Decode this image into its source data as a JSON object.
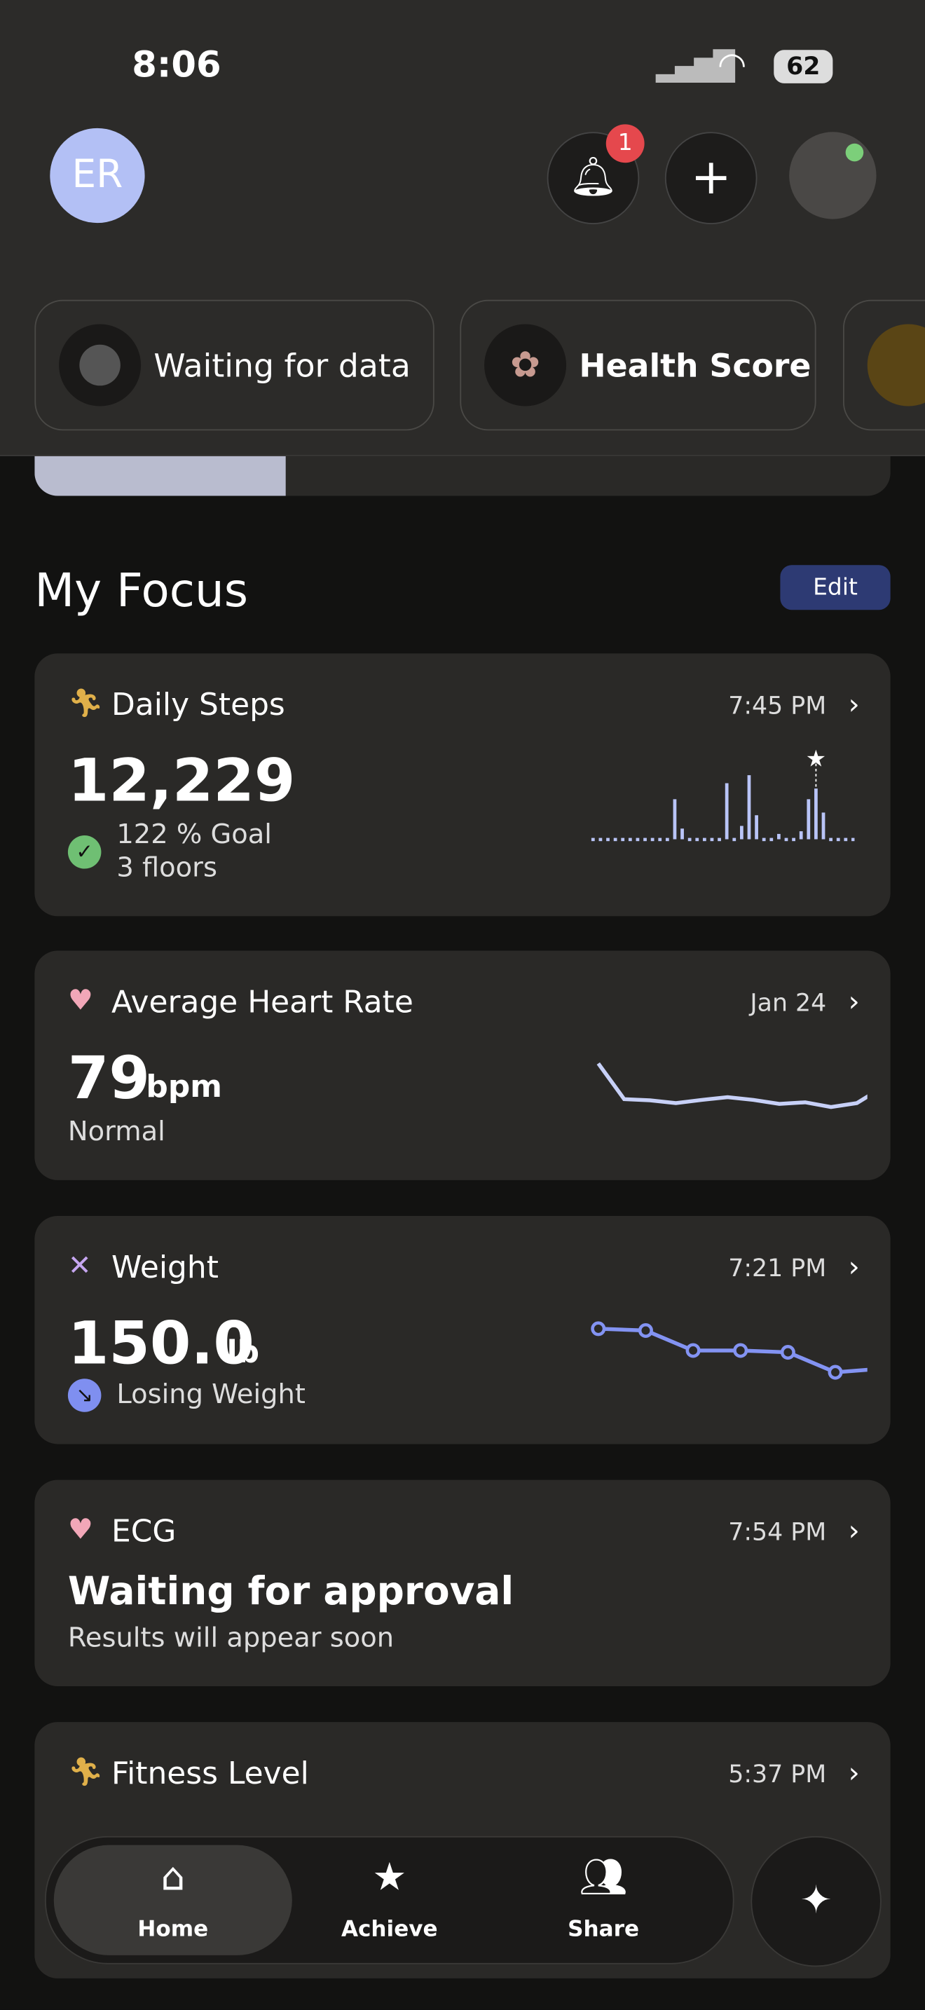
{
  "status_bar": {
    "time": "8:06",
    "battery": "62"
  },
  "header": {
    "avatar": "ER",
    "notification_count": "1"
  },
  "chips": [
    "Waiting for data",
    "Health Score"
  ],
  "section": {
    "title": "My Focus",
    "action": "Edit"
  },
  "cards": [
    {
      "title": "Daily Steps",
      "time": "7:45 PM",
      "value": "12,229",
      "detail": [
        "122 % Goal",
        "3 floors"
      ],
      "chart": [
        1,
        1,
        1,
        1,
        1,
        1,
        1,
        1,
        1,
        1,
        1,
        30,
        8,
        1,
        1,
        1,
        1,
        1,
        42,
        1,
        10,
        48,
        18,
        1,
        1,
        4,
        1,
        1,
        6,
        30,
        38,
        20,
        1,
        1,
        1,
        1,
        1,
        1,
        1,
        1
      ]
    },
    {
      "title": "Average Heart Rate",
      "time": "Jan 24",
      "value": "79",
      "unit": "bpm",
      "detail": [
        "Normal"
      ],
      "chart": [
        88,
        79,
        78.7,
        78,
        78.8,
        79.5,
        78.8,
        77.8,
        78.2,
        77,
        78,
        82
      ]
    },
    {
      "title": "Weight",
      "time": "7:21 PM",
      "value": "150.0",
      "unit": "lb",
      "detail": [
        "Losing Weight"
      ],
      "chart": [
        150.6,
        150.55,
        150.0,
        150.0,
        149.95,
        149.4,
        149.5
      ]
    },
    {
      "title": "ECG",
      "time": "7:54 PM",
      "value": "Waiting for approval",
      "detail": [
        "Results will appear soon"
      ]
    },
    {
      "title": "Fitness Level",
      "time": "5:37 PM"
    }
  ],
  "nav": [
    "Home",
    "Achieve",
    "Share"
  ]
}
